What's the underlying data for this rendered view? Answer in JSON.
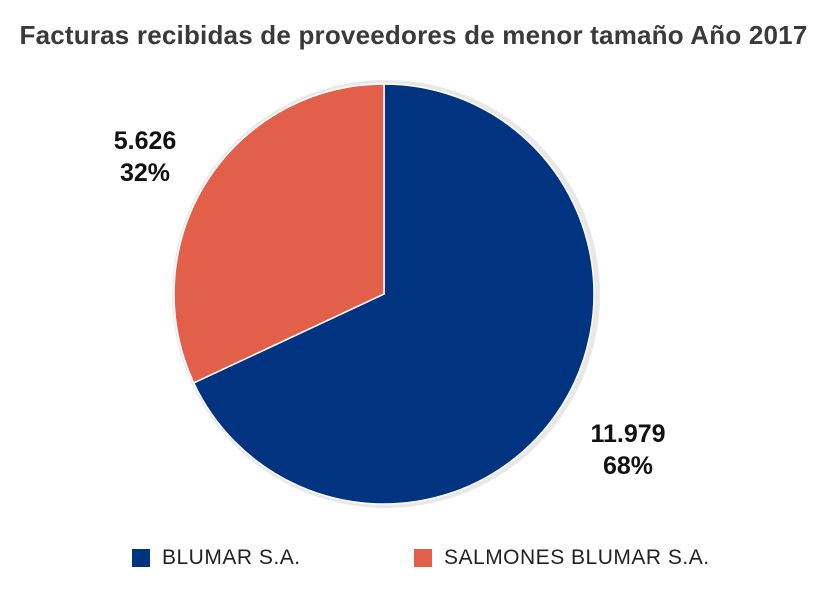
{
  "chart_data": {
    "type": "pie",
    "title": "Facturas recibidas de proveedores de menor tamaño Año 2017",
    "series": [
      {
        "name": "BLUMAR S.A.",
        "value": 11979,
        "value_label": "11.979",
        "percent_label": "68%",
        "color": "#003380"
      },
      {
        "name": "SALMONES BLUMAR S.A.",
        "value": 5626,
        "value_label": "5.626",
        "percent_label": "32%",
        "color": "#E2604A"
      }
    ],
    "legend_position": "bottom"
  }
}
